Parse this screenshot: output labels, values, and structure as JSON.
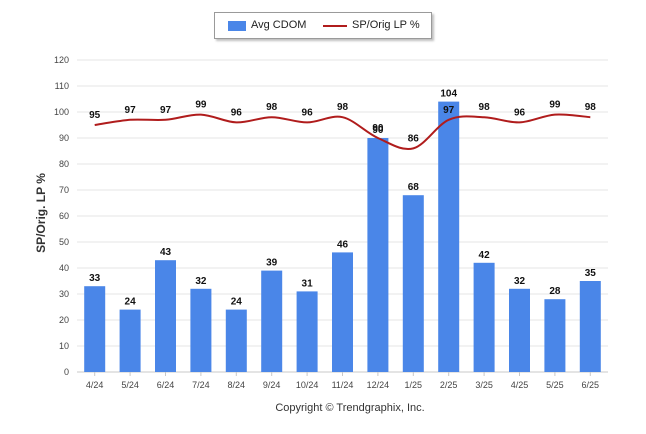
{
  "chart_data": {
    "type": "bar",
    "categories": [
      "4/24",
      "5/24",
      "6/24",
      "7/24",
      "8/24",
      "9/24",
      "10/24",
      "11/24",
      "12/24",
      "1/25",
      "2/25",
      "3/25",
      "4/25",
      "5/25",
      "6/25"
    ],
    "series": [
      {
        "name": "Avg CDOM",
        "type": "bar",
        "color": "#4a86e8",
        "values": [
          33,
          24,
          43,
          32,
          24,
          39,
          31,
          46,
          90,
          68,
          104,
          42,
          32,
          28,
          35
        ]
      },
      {
        "name": "SP/Orig LP %",
        "type": "line",
        "color": "#b01c1c",
        "values": [
          95,
          97,
          97,
          99,
          96,
          98,
          96,
          98,
          90,
          86,
          97,
          98,
          96,
          99,
          98
        ]
      }
    ],
    "ylabel": "SP/Orig. LP %",
    "ylim": [
      0,
      120
    ],
    "yticks": [
      0,
      10,
      20,
      30,
      40,
      50,
      60,
      70,
      80,
      90,
      100,
      110,
      120
    ],
    "grid": true,
    "legend_position": "top-center"
  },
  "copyright": "Copyright © Trendgraphix, Inc."
}
